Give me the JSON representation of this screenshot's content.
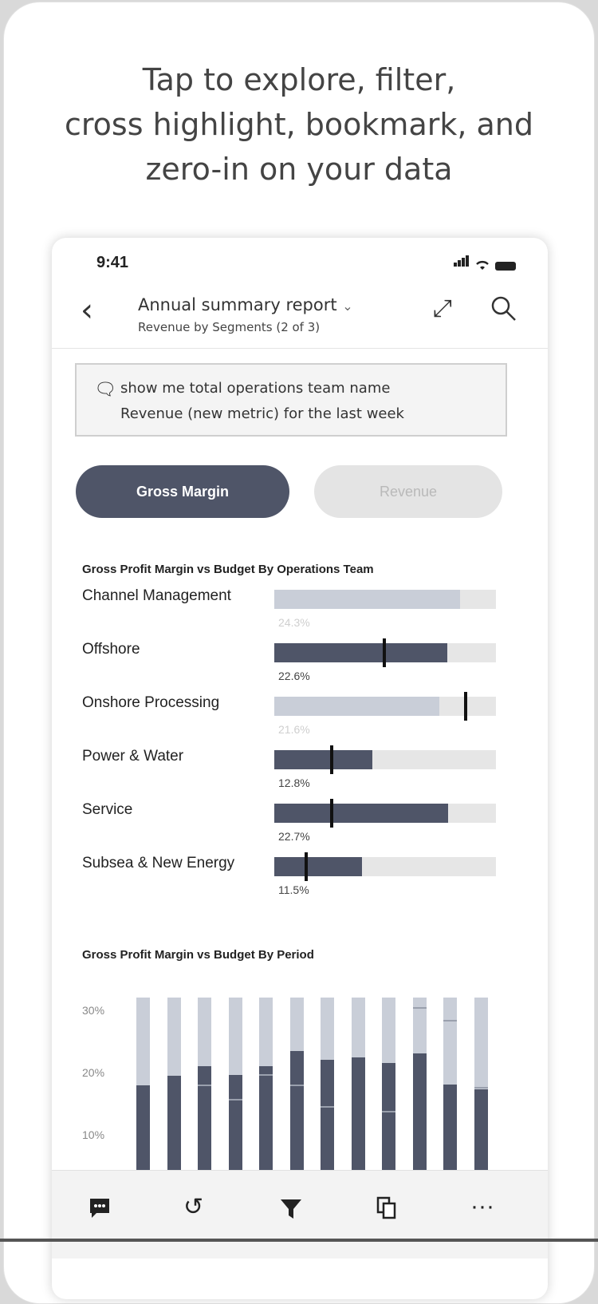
{
  "headline": {
    "line1": "Tap to explore, filter,",
    "line2": "cross highlight, bookmark, and",
    "line3": "zero-in on your data"
  },
  "status_bar": {
    "time": "9:41"
  },
  "nav": {
    "back_icon": "chevron-left",
    "title": "Annual summary report",
    "title_dropdown_icon": "chevron-down",
    "subtitle": "Revenue by Segments (2 of 3)",
    "expand_icon": "expand-arrows",
    "search_icon": "magnifier"
  },
  "qa": {
    "icon": "chat-sparkle",
    "line1": "show me total operations team name",
    "line2": "Revenue (new metric) for the last week"
  },
  "toggle": {
    "active": "Gross Margin",
    "inactive": "Revenue"
  },
  "chart1": {
    "title": "Gross Profit Margin vs Budget By Operations Team",
    "rows": [
      {
        "label": "Channel Management",
        "value_label": "24.3%",
        "dimmed": true
      },
      {
        "label": "Offshore",
        "value_label": "22.6%",
        "dimmed": false
      },
      {
        "label": "Onshore Processing",
        "value_label": "21.6%",
        "dimmed": true
      },
      {
        "label": "Power & Water",
        "value_label": "12.8%",
        "dimmed": false
      },
      {
        "label": "Service",
        "value_label": "22.7%",
        "dimmed": false
      },
      {
        "label": "Subsea & New Energy",
        "value_label": "11.5%",
        "dimmed": false
      }
    ]
  },
  "chart2": {
    "title": "Gross Profit Margin vs Budget By Period",
    "y_ticks": [
      "30%",
      "20%",
      "10%"
    ]
  },
  "chart_data": [
    {
      "type": "bar",
      "title": "Gross Profit Margin vs Budget By Operations Team",
      "categories": [
        "Channel Management",
        "Offshore",
        "Onshore Processing",
        "Power & Water",
        "Service",
        "Subsea & New Energy"
      ],
      "values": [
        24.3,
        22.6,
        21.6,
        12.8,
        22.7,
        11.5
      ],
      "targets": [
        null,
        14.2,
        24.8,
        7.3,
        7.3,
        4.0
      ],
      "xlim": [
        0,
        29
      ]
    },
    {
      "type": "bar",
      "title": "Gross Profit Margin vs Budget By Period",
      "y_ticks": [
        "30%",
        "20%",
        "10%"
      ],
      "ylim": [
        0,
        32
      ],
      "values": [
        16.7,
        18.3,
        20.0,
        18.5,
        20.0,
        22.7,
        21.2,
        21.5,
        20.6,
        22.2,
        16.9,
        16.0
      ],
      "targets": [
        null,
        null,
        16.5,
        14.0,
        18.3,
        16.6,
        12.8,
        null,
        12.0,
        30.0,
        27.8,
        16.2
      ]
    }
  ],
  "toolbar": {
    "icons": [
      "comment-icon",
      "undo-icon",
      "filter-icon",
      "copy-icon",
      "more-icon"
    ]
  },
  "colors": {
    "accent": "#4f5568",
    "dim_bar": "#c9ced8",
    "track": "#e6e6e6"
  }
}
